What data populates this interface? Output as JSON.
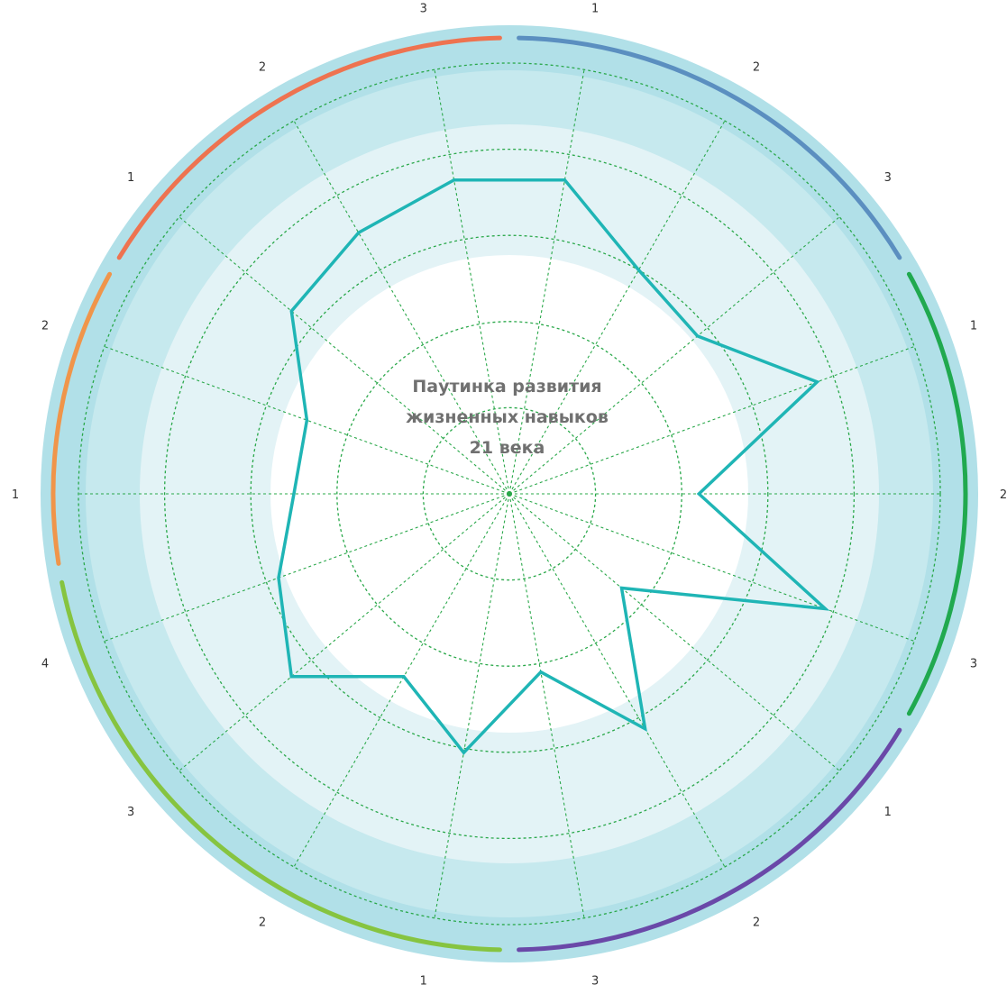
{
  "chart_data": {
    "type": "radar",
    "title_lines": [
      "Паутинка развития",
      "жизненных навыков",
      "21 века"
    ],
    "categories": [
      "1",
      "2",
      "3",
      "1",
      "2",
      "3",
      "1",
      "2",
      "3",
      "1",
      "2",
      "3",
      "4",
      "1",
      "2",
      "1",
      "2",
      "3"
    ],
    "values": [
      3.7,
      3.0,
      2.85,
      3.8,
      2.2,
      3.9,
      1.7,
      3.15,
      2.1,
      3.05,
      2.45,
      3.3,
      2.85,
      2.5,
      2.5,
      3.3,
      3.5,
      3.7
    ],
    "rlim": [
      0,
      5
    ],
    "rings": [
      1,
      2,
      3,
      4,
      5
    ],
    "series_color": "#1fb5b5",
    "grid_color": "#2aa84a",
    "band_colors": [
      "#ffffff",
      "#e3f3f6",
      "#c6e9ee",
      "#b1e0e8"
    ],
    "groups": [
      {
        "start": 0,
        "count": 3,
        "color": "#5b8fc0"
      },
      {
        "start": 3,
        "count": 3,
        "color": "#20a94f"
      },
      {
        "start": 6,
        "count": 3,
        "color": "#6a48a8"
      },
      {
        "start": 9,
        "count": 4,
        "color": "#86c440"
      },
      {
        "start": 13,
        "count": 2,
        "color": "#f0954a"
      },
      {
        "start": 15,
        "count": 3,
        "color": "#ee7350"
      }
    ]
  }
}
